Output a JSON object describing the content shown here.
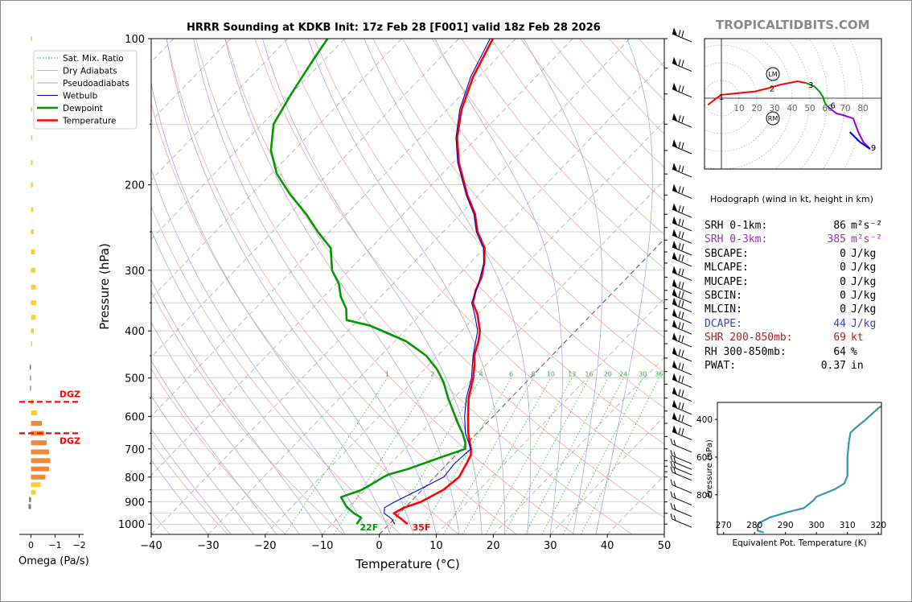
{
  "brand": "TROPICALTIDBITS.COM",
  "chart_data": [
    {
      "type": "line",
      "title": "HRRR Sounding at KDKB Init: 17z Feb 28 [F001] valid 18z Feb 28 2026",
      "xlabel": "Temperature (°C)",
      "ylabel": "Pressure (hPa)",
      "xlim": [
        -40,
        50
      ],
      "ylim": [
        1050,
        100
      ],
      "y_scale": "log",
      "x_ticks": [
        "−40",
        "−30",
        "−20",
        "−10",
        "0",
        "10",
        "20",
        "30",
        "40",
        "50"
      ],
      "y_ticks": [
        "100",
        "200",
        "300",
        "400",
        "500",
        "600",
        "700",
        "800",
        "900",
        "1000"
      ],
      "legend": {
        "position": "top-left",
        "entries": [
          {
            "label": "Sat. Mix. Ratio",
            "color": "#2ca02c",
            "style": "dotted"
          },
          {
            "label": "Dry Adiabats",
            "color": "#e8a0a0",
            "style": "solid"
          },
          {
            "label": "Pseudoadiabats",
            "color": "#a0a0d8",
            "style": "solid"
          },
          {
            "label": "Wetbulb",
            "color": "#0000cc",
            "style": "solid"
          },
          {
            "label": "Dewpoint",
            "color": "#009900",
            "style": "solid"
          },
          {
            "label": "Temperature",
            "color": "#ff0000",
            "style": "solid"
          }
        ]
      },
      "mixing_ratio_labels": [
        "1",
        "2",
        "4",
        "6",
        "8",
        "10",
        "13",
        "16",
        "20",
        "24",
        "30",
        "36"
      ],
      "mixing_ratio_values": [
        1,
        2,
        4,
        6,
        8,
        10,
        13,
        16,
        20,
        24,
        30,
        36
      ],
      "surface_labels": {
        "dewpoint": "22F",
        "temperature": "35F"
      },
      "series": [
        {
          "name": "Temperature",
          "color": "#ff0000",
          "points": [
            [
              3.2,
              1000
            ],
            [
              1.2,
              975
            ],
            [
              -1,
              950
            ],
            [
              -0.2,
              925
            ],
            [
              1.8,
              900
            ],
            [
              3.7,
              850
            ],
            [
              4.3,
              800
            ],
            [
              3.3,
              750
            ],
            [
              2.6,
              720
            ],
            [
              1.6,
              700
            ],
            [
              -1.5,
              650
            ],
            [
              -4.4,
              600
            ],
            [
              -7.4,
              550
            ],
            [
              -10,
              500
            ],
            [
              -12,
              470
            ],
            [
              -13.6,
              450
            ],
            [
              -15.3,
              420
            ],
            [
              -16.8,
              400
            ],
            [
              -20,
              370
            ],
            [
              -22.8,
              350
            ],
            [
              -24.4,
              330
            ],
            [
              -25.6,
              310
            ],
            [
              -27.5,
              290
            ],
            [
              -30,
              270
            ],
            [
              -34,
              250
            ],
            [
              -37.4,
              230
            ],
            [
              -42,
              210
            ],
            [
              -49,
              180
            ],
            [
              -53.5,
              160
            ],
            [
              -57.5,
              140
            ],
            [
              -61,
              120
            ],
            [
              -64,
              100
            ]
          ]
        },
        {
          "name": "Dewpoint",
          "color": "#009900",
          "points": [
            [
              -5.7,
              1000
            ],
            [
              -6,
              970
            ],
            [
              -8,
              950
            ],
            [
              -10.5,
              920
            ],
            [
              -13,
              880
            ],
            [
              -10.6,
              850
            ],
            [
              -9.6,
              820
            ],
            [
              -9,
              800
            ],
            [
              -8.5,
              790
            ],
            [
              -6,
              770
            ],
            [
              -2.4,
              730
            ],
            [
              0.6,
              700
            ],
            [
              -0.4,
              680
            ],
            [
              -2.5,
              650
            ],
            [
              -5,
              620
            ],
            [
              -7.5,
              590
            ],
            [
              -11,
              550
            ],
            [
              -14.5,
              510
            ],
            [
              -17.8,
              480
            ],
            [
              -22,
              450
            ],
            [
              -28,
              420
            ],
            [
              -37,
              390
            ],
            [
              -42,
              380
            ],
            [
              -44,
              360
            ],
            [
              -47,
              340
            ],
            [
              -49.5,
              320
            ],
            [
              -53,
              300
            ],
            [
              -57,
              270
            ],
            [
              -62,
              250
            ],
            [
              -67,
              230
            ],
            [
              -73,
              210
            ],
            [
              -79,
              190
            ],
            [
              -84,
              170
            ],
            [
              -88,
              150
            ],
            [
              -90,
              130
            ],
            [
              -92,
              110
            ],
            [
              -93,
              100
            ]
          ]
        },
        {
          "name": "Wetbulb",
          "color": "#0000cc",
          "points": [
            [
              1,
              1000
            ],
            [
              -0.5,
              975
            ],
            [
              -2.7,
              950
            ],
            [
              -3.6,
              925
            ],
            [
              -2.8,
              900
            ],
            [
              -0.6,
              850
            ],
            [
              1.6,
              800
            ],
            [
              1.2,
              750
            ],
            [
              1.6,
              700
            ],
            [
              -2,
              650
            ],
            [
              -5,
              600
            ],
            [
              -7.8,
              550
            ],
            [
              -10.3,
              500
            ],
            [
              -13.8,
              450
            ],
            [
              -17.2,
              400
            ],
            [
              -20.5,
              370
            ],
            [
              -23,
              350
            ],
            [
              -25,
              320
            ],
            [
              -27.6,
              290
            ],
            [
              -30.2,
              270
            ],
            [
              -34.2,
              250
            ],
            [
              -37.6,
              230
            ],
            [
              -42.2,
              210
            ],
            [
              -49.2,
              180
            ],
            [
              -53.7,
              160
            ],
            [
              -57.8,
              140
            ],
            [
              -61.4,
              120
            ],
            [
              -64.5,
              100
            ]
          ]
        }
      ],
      "wind_barbs_levels_hpa": [
        1000,
        950,
        900,
        850,
        800,
        780,
        760,
        740,
        700,
        660,
        620,
        585,
        550,
        515,
        485,
        455,
        425,
        400,
        380,
        360,
        345,
        330,
        310,
        290,
        275,
        260,
        245,
        230,
        210,
        190,
        170,
        150,
        130,
        115,
        100
      ]
    },
    {
      "type": "bar",
      "xlabel": "Omega (Pa/s)",
      "x_ticks": [
        "0",
        "−1",
        "−2"
      ],
      "annotations": [
        "DGZ",
        "DGZ"
      ],
      "dgz_hpa": [
        560,
        650
      ],
      "bars": [
        {
          "p": 100,
          "v": -0.05
        },
        {
          "p": 120,
          "v": -0.04
        },
        {
          "p": 140,
          "v": -0.05
        },
        {
          "p": 160,
          "v": -0.06
        },
        {
          "p": 180,
          "v": -0.07
        },
        {
          "p": 200,
          "v": -0.08
        },
        {
          "p": 225,
          "v": -0.1
        },
        {
          "p": 250,
          "v": -0.12
        },
        {
          "p": 275,
          "v": -0.16
        },
        {
          "p": 300,
          "v": -0.18
        },
        {
          "p": 325,
          "v": -0.2
        },
        {
          "p": 350,
          "v": -0.22
        },
        {
          "p": 375,
          "v": -0.2
        },
        {
          "p": 400,
          "v": -0.12
        },
        {
          "p": 425,
          "v": -0.05
        },
        {
          "p": 475,
          "v": 0.05
        },
        {
          "p": 500,
          "v": 0.04
        },
        {
          "p": 525,
          "v": 0.04
        },
        {
          "p": 560,
          "v": -0.1
        },
        {
          "p": 590,
          "v": -0.25
        },
        {
          "p": 620,
          "v": -0.45
        },
        {
          "p": 650,
          "v": -0.55
        },
        {
          "p": 680,
          "v": -0.65
        },
        {
          "p": 710,
          "v": -0.75
        },
        {
          "p": 740,
          "v": -0.8
        },
        {
          "p": 770,
          "v": -0.75
        },
        {
          "p": 800,
          "v": -0.6
        },
        {
          "p": 830,
          "v": -0.4
        },
        {
          "p": 860,
          "v": -0.2
        },
        {
          "p": 890,
          "v": 0.08
        },
        {
          "p": 920,
          "v": 0.1
        }
      ]
    },
    {
      "type": "line",
      "title": "Hodograph (wind in kt, height in km)",
      "ring_labels": [
        "10",
        "20",
        "30",
        "40",
        "50",
        "60",
        "70",
        "80"
      ],
      "ring_values": [
        10,
        20,
        30,
        40,
        50,
        60,
        70,
        80
      ],
      "markers": [
        "LM",
        "RM"
      ],
      "series": [
        {
          "name": "0-3 km",
          "color": "#ff0000",
          "points": [
            [
              -8,
              -4
            ],
            [
              -3,
              0
            ],
            [
              0,
              2
            ],
            [
              10,
              3
            ],
            [
              20,
              4
            ],
            [
              28,
              6
            ],
            [
              35,
              8
            ],
            [
              40,
              9
            ],
            [
              45,
              10
            ],
            [
              50,
              9
            ]
          ]
        },
        {
          "name": "3-6 km",
          "color": "#009900",
          "points": [
            [
              50,
              9
            ],
            [
              55,
              7
            ],
            [
              58,
              4
            ],
            [
              60,
              1
            ],
            [
              61,
              -2
            ],
            [
              62,
              -4
            ],
            [
              63,
              -5
            ]
          ]
        },
        {
          "name": "6-9 km",
          "color": "#9900cc",
          "points": [
            [
              63,
              -5
            ],
            [
              68,
              -9
            ],
            [
              72,
              -10
            ],
            [
              78,
              -12
            ],
            [
              81,
              -20
            ],
            [
              84,
              -26
            ],
            [
              88,
              -30
            ]
          ]
        },
        {
          "name": "9+ km",
          "color": "#0000cc",
          "points": [
            [
              88,
              -30
            ],
            [
              82,
              -26
            ],
            [
              76,
              -20
            ]
          ]
        }
      ],
      "point_labels": [
        {
          "text": "1",
          "u": 0,
          "v": 1
        },
        {
          "text": "2",
          "u": 30,
          "v": 6
        },
        {
          "text": "3",
          "u": 53,
          "v": 8
        },
        {
          "text": "6",
          "u": 66,
          "v": -4
        },
        {
          "text": "9",
          "u": 90,
          "v": -29
        }
      ]
    },
    {
      "type": "line",
      "xlabel": "Equivalent Pot. Temperature (K)",
      "ylabel": "Pressure (hPa)",
      "xlim": [
        268,
        321
      ],
      "x_ticks": [
        "270",
        "280",
        "290",
        "300",
        "310",
        "320"
      ],
      "y_ticks": [
        "400",
        "600",
        "800"
      ],
      "ylim": [
        1010,
        310
      ],
      "series": [
        {
          "name": "Theta-E",
          "color": "#3399aa",
          "points": [
            [
              283,
              1000
            ],
            [
              281,
              990
            ],
            [
              281,
              960
            ],
            [
              282,
              945
            ],
            [
              285,
              920
            ],
            [
              290,
              895
            ],
            [
              296,
              870
            ],
            [
              299,
              830
            ],
            [
              300,
              810
            ],
            [
              303,
              790
            ],
            [
              306,
              770
            ],
            [
              309,
              740
            ],
            [
              310,
              700
            ],
            [
              310,
              600
            ],
            [
              310.5,
              520
            ],
            [
              311,
              470
            ],
            [
              313,
              440
            ],
            [
              316,
              400
            ],
            [
              318,
              370
            ],
            [
              320,
              340
            ],
            [
              322,
              320
            ],
            [
              325,
              300
            ]
          ]
        }
      ]
    }
  ],
  "stats": [
    {
      "label": "SRH 0-1km:",
      "value": "86",
      "unit": "m²s⁻²",
      "color": "#000000"
    },
    {
      "label": "SRH 0-3km:",
      "value": "385",
      "unit": "m²s⁻²",
      "color": "#9933aa"
    },
    {
      "label": "SBCAPE:",
      "value": "0",
      "unit": "J/kg",
      "color": "#000000"
    },
    {
      "label": "MLCAPE:",
      "value": "0",
      "unit": "J/kg",
      "color": "#000000"
    },
    {
      "label": "MUCAPE:",
      "value": "0",
      "unit": "J/kg",
      "color": "#000000"
    },
    {
      "label": "SBCIN:",
      "value": "0",
      "unit": "J/kg",
      "color": "#000000"
    },
    {
      "label": "MLCIN:",
      "value": "0",
      "unit": "J/kg",
      "color": "#000000"
    },
    {
      "label": "DCAPE:",
      "value": "44",
      "unit": "J/kg",
      "color": "#3344cc"
    },
    {
      "label": "SHR 200-850mb:",
      "value": "69",
      "unit": "kt",
      "color": "#aa2222"
    },
    {
      "label": "RH 300-850mb:",
      "value": "64",
      "unit": "%",
      "color": "#000000"
    },
    {
      "label": "PWAT:",
      "value": "0.37",
      "unit": "in",
      "color": "#000000"
    }
  ]
}
